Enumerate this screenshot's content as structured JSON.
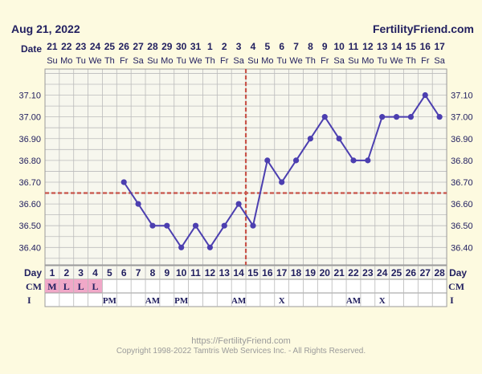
{
  "header": {
    "date": "Aug 21, 2022",
    "site": "FertilityFriend.com"
  },
  "footer": {
    "url": "https://FertilityFriend.com",
    "copyright": "Copyright 1998-2022 Tamtris Web Services Inc. - All Rights Reserved."
  },
  "row_labels": {
    "date": "Date",
    "day": "Day",
    "cm": "CM",
    "i": "I"
  },
  "chart_data": {
    "type": "line",
    "dates": [
      "21",
      "22",
      "23",
      "24",
      "25",
      "26",
      "27",
      "28",
      "29",
      "30",
      "31",
      "1",
      "2",
      "3",
      "4",
      "5",
      "6",
      "7",
      "8",
      "9",
      "10",
      "11",
      "12",
      "13",
      "14",
      "15",
      "16",
      "17"
    ],
    "weekdays": [
      "Su",
      "Mo",
      "Tu",
      "We",
      "Th",
      "Fr",
      "Sa",
      "Su",
      "Mo",
      "Tu",
      "We",
      "Th",
      "Fr",
      "Sa",
      "Su",
      "Mo",
      "Tu",
      "We",
      "Th",
      "Fr",
      "Sa",
      "Su",
      "Mo",
      "Tu",
      "We",
      "Th",
      "Fr",
      "Sa"
    ],
    "days": [
      1,
      2,
      3,
      4,
      5,
      6,
      7,
      8,
      9,
      10,
      11,
      12,
      13,
      14,
      15,
      16,
      17,
      18,
      19,
      20,
      21,
      22,
      23,
      24,
      25,
      26,
      27,
      28
    ],
    "series": [
      {
        "values": [
          null,
          null,
          null,
          null,
          null,
          36.7,
          36.6,
          36.5,
          36.5,
          36.4,
          36.5,
          36.4,
          36.5,
          36.6,
          36.5,
          36.8,
          36.7,
          36.8,
          36.9,
          37.0,
          36.9,
          36.8,
          36.8,
          37.0,
          37.0,
          37.0,
          37.1,
          37.0
        ]
      }
    ],
    "y_ticks": [
      37.1,
      37.0,
      36.9,
      36.8,
      36.7,
      36.6,
      36.5,
      36.4
    ],
    "ylim": [
      36.32,
      37.22
    ],
    "coverline": 36.65,
    "ovulation_day": 15,
    "cm": [
      "M",
      "L",
      "L",
      "L",
      "",
      "",
      "",
      "",
      "",
      "",
      "",
      "",
      "",
      "",
      "",
      "",
      "",
      "",
      "",
      "",
      "",
      "",
      "",
      "",
      "",
      "",
      "",
      ""
    ],
    "i_row": [
      "",
      "",
      "",
      "",
      "PM",
      "",
      "",
      "AM",
      "",
      "PM",
      "",
      "",
      "",
      "AM",
      "",
      "",
      "X",
      "",
      "",
      "",
      "",
      "AM",
      "",
      "X",
      "",
      "",
      "",
      ""
    ],
    "colors": {
      "line": "#4c3fb0",
      "grid": "#bbbbbb",
      "coverline": "#c8544a",
      "cm_fill": "#f0a8c8",
      "plot_bg": "#f7f7ee"
    }
  }
}
